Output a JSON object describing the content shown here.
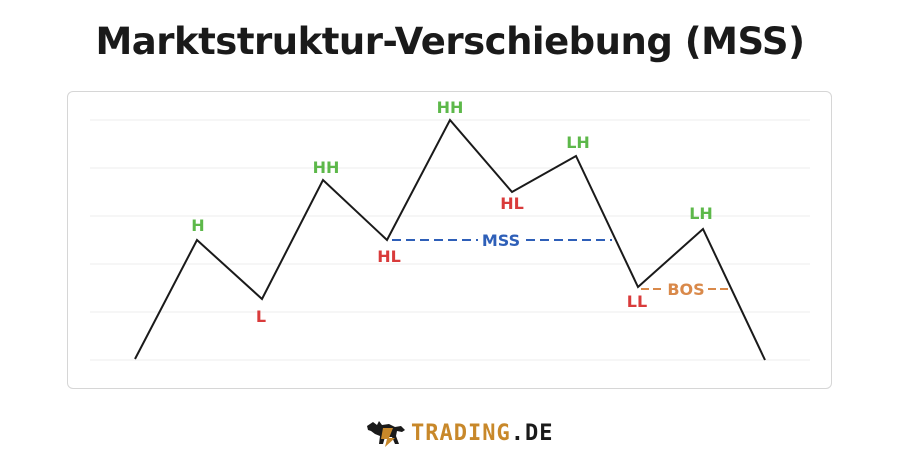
{
  "title": "Marktstruktur-Verschiebung (MSS)",
  "colors": {
    "green": "#5db84a",
    "red": "#d93b3b",
    "blue": "#2e5fb8",
    "orange": "#d9894a",
    "line": "#1a1a1a",
    "grid": "#ececec"
  },
  "labels": {
    "h": "H",
    "l": "L",
    "hh1": "HH",
    "hl1": "HL",
    "hh2": "HH",
    "hl2": "HL",
    "lh1": "LH",
    "ll": "LL",
    "lh2": "LH",
    "mss": "MSS",
    "bos": "BOS"
  },
  "brand": {
    "part1": "TRADING",
    "part2": ".DE",
    "logo_icon": "bull-icon"
  }
}
